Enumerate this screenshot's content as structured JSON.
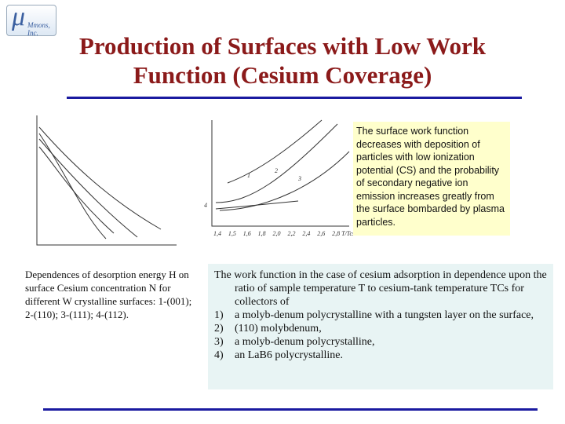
{
  "logo": {
    "symbol": "μ",
    "name": "Mmons, Inc."
  },
  "title": "Production of Surfaces with Low Work Function (Cesium Coverage)",
  "note": "The surface work function decreases with deposition of particles with low ionization potential (CS) and the probability of secondary negative ion emission increases greatly from the surface bombarded by plasma particles.",
  "caption": "Dependences of desorption energy H on surface Cesium concentration N for different W crystalline surfaces: 1-(001); 2-(110); 3-(111); 4-(112).",
  "right_plot": {
    "x_ticks": [
      "1,4",
      "1,5",
      "1,6",
      "1,8",
      "2,0",
      "2,2",
      "2,4",
      "2,6",
      "2,8 T/Tcs"
    ],
    "curve_labels": [
      "1",
      "2",
      "3",
      "4"
    ]
  },
  "description": {
    "intro": "The work function in the case of cesium adsorption in dependence upon the ratio of sample temperature T to cesium-tank temperature TCs for collectors of",
    "items": [
      {
        "marker": "1)",
        "text": "a molyb-denum polycrystalline with a tungsten layer on the surface,"
      },
      {
        "marker": "2)",
        "text": "(110) molybdenum,"
      },
      {
        "marker": "3)",
        "text": "a molyb-denum polycrystalline,"
      },
      {
        "marker": "4)",
        "text": "an LaB6 polycrystalline."
      }
    ]
  }
}
